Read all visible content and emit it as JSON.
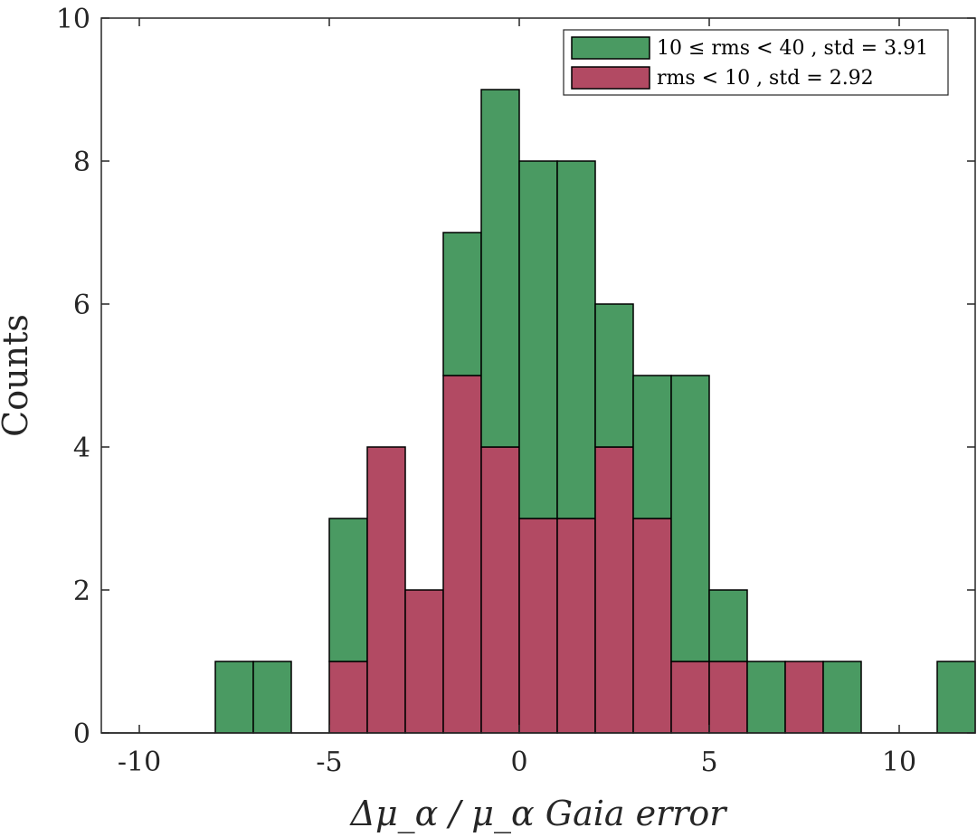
{
  "chart_data": {
    "type": "bar",
    "stacked": true,
    "title": "",
    "xlabel": "Δμ_α / μ_α Gaia error",
    "ylabel": "Counts",
    "xlim": [
      -11,
      12
    ],
    "ylim": [
      0,
      10
    ],
    "x_ticks": [
      -10,
      -5,
      0,
      5,
      10
    ],
    "x_tick_labels": [
      "-10",
      "-5",
      "0",
      "5",
      "10"
    ],
    "y_ticks": [
      0,
      2,
      4,
      6,
      8,
      10
    ],
    "y_tick_labels": [
      "0",
      "2",
      "4",
      "6",
      "8",
      "10"
    ],
    "bin_edges": [
      -11,
      -10,
      -9,
      -8,
      -7,
      -6,
      -5,
      -4,
      -3,
      -2,
      -1,
      0,
      1,
      2,
      3,
      4,
      5,
      6,
      7,
      8,
      9,
      10,
      11,
      12
    ],
    "grid": false,
    "legend_position": "top-right",
    "series": [
      {
        "name": "rms < 10 , std = 2.92",
        "color": "#b24a63",
        "values": [
          0,
          0,
          0,
          0,
          0,
          0,
          1,
          4,
          2,
          5,
          4,
          3,
          3,
          4,
          3,
          1,
          1,
          0,
          1,
          0,
          0,
          0,
          0
        ]
      },
      {
        "name": "10 ≤ rms < 40 , std = 3.91",
        "color": "#4a9a62",
        "values": [
          0,
          0,
          0,
          1,
          1,
          0,
          2,
          0,
          0,
          2,
          5,
          5,
          5,
          2,
          2,
          4,
          1,
          1,
          0,
          1,
          0,
          0,
          1
        ]
      }
    ]
  }
}
